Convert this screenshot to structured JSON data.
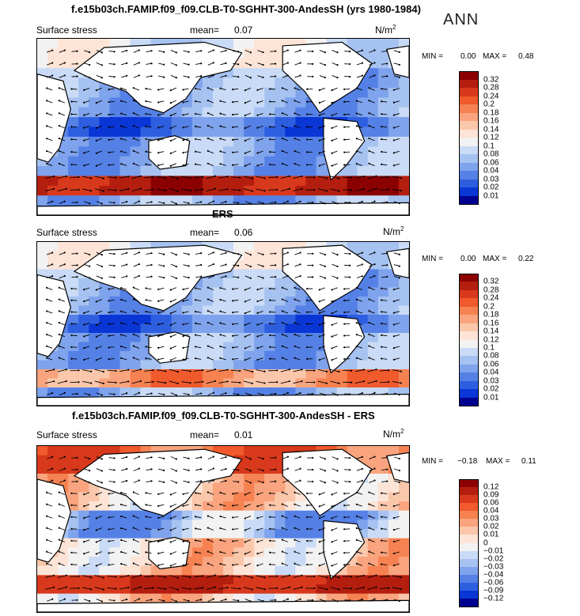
{
  "season": "ANN",
  "panels": [
    {
      "id": "model",
      "title": "f.e15b03ch.FAMIP.f09_f09.CLB-T0-SGHHT-300-AndesSH (yrs 1980-1984)",
      "field": "Surface stress",
      "mean_label": "mean=",
      "mean_value": "0.07",
      "units": "N/m",
      "units_sup": "2",
      "min_label": "MIN =",
      "min_value": "0.00",
      "max_label": "MAX =",
      "max_value": "0.48",
      "levels": [
        "0.32",
        "0.28",
        "0.24",
        "0.2",
        "0.18",
        "0.16",
        "0.14",
        "0.12",
        "0.1",
        "0.08",
        "0.06",
        "0.04",
        "0.03",
        "0.02",
        "0.01"
      ],
      "colors": [
        "#8b0000",
        "#b41e0f",
        "#d8381c",
        "#f05a2c",
        "#f68252",
        "#f9a47e",
        "#fbc7ab",
        "#fde4d6",
        "#f2f2f2",
        "#c9dbf6",
        "#a6c2f1",
        "#7fa3ec",
        "#5581e6",
        "#2e5ee0",
        "#0a36d6",
        "#000090"
      ]
    },
    {
      "id": "obs",
      "title": "ERS",
      "field": "Surface stress",
      "mean_label": "mean=",
      "mean_value": "0.06",
      "units": "N/m",
      "units_sup": "2",
      "min_label": "MIN =",
      "min_value": "0.00",
      "max_label": "MAX =",
      "max_value": "0.22",
      "levels": [
        "0.32",
        "0.28",
        "0.24",
        "0.2",
        "0.18",
        "0.16",
        "0.14",
        "0.12",
        "0.1",
        "0.08",
        "0.06",
        "0.04",
        "0.03",
        "0.02",
        "0.01"
      ],
      "colors": [
        "#8b0000",
        "#b41e0f",
        "#d8381c",
        "#f05a2c",
        "#f68252",
        "#f9a47e",
        "#fbc7ab",
        "#fde4d6",
        "#f2f2f2",
        "#c9dbf6",
        "#a6c2f1",
        "#7fa3ec",
        "#5581e6",
        "#2e5ee0",
        "#0a36d6",
        "#000090"
      ]
    },
    {
      "id": "diff",
      "title": "f.e15b03ch.FAMIP.f09_f09.CLB-T0-SGHHT-300-AndesSH - ERS",
      "field": "Surface stress",
      "mean_label": "mean=",
      "mean_value": "0.01",
      "units": "N/m",
      "units_sup": "2",
      "min_label": "MIN =",
      "min_value": "−0.18",
      "max_label": "MAX =",
      "max_value": "0.11",
      "levels": [
        "0.12",
        "0.09",
        "0.06",
        "0.04",
        "0.03",
        "0.02",
        "0.01",
        "0",
        "−0.01",
        "−0.02",
        "−0.03",
        "−0.04",
        "−0.06",
        "−0.09",
        "−0.12"
      ],
      "colors": [
        "#8b0000",
        "#b41e0f",
        "#d8381c",
        "#f05a2c",
        "#f68252",
        "#f9a47e",
        "#fbc7ab",
        "#fde4d6",
        "#f2f2f2",
        "#c9dbf6",
        "#a6c2f1",
        "#7fa3ec",
        "#5581e6",
        "#2e5ee0",
        "#0a36d6",
        "#000090"
      ]
    }
  ],
  "chart_data": [
    {
      "type": "heatmap",
      "title": "f.e15b03ch.FAMIP.f09_f09.CLB-T0-SGHHT-300-AndesSH (yrs 1980-1984)",
      "subtitle": "ANN",
      "variable": "Surface stress",
      "units": "N/m2",
      "mean": 0.07,
      "min": 0.0,
      "max": 0.48,
      "contour_levels": [
        0.01,
        0.02,
        0.03,
        0.04,
        0.06,
        0.08,
        0.1,
        0.12,
        0.14,
        0.16,
        0.18,
        0.2,
        0.24,
        0.28,
        0.32
      ],
      "overlay": "wind stress vectors"
    },
    {
      "type": "heatmap",
      "title": "ERS",
      "variable": "Surface stress",
      "units": "N/m2",
      "mean": 0.06,
      "min": 0.0,
      "max": 0.22,
      "contour_levels": [
        0.01,
        0.02,
        0.03,
        0.04,
        0.06,
        0.08,
        0.1,
        0.12,
        0.14,
        0.16,
        0.18,
        0.2,
        0.24,
        0.28,
        0.32
      ],
      "overlay": "wind stress vectors"
    },
    {
      "type": "heatmap",
      "title": "f.e15b03ch.FAMIP.f09_f09.CLB-T0-SGHHT-300-AndesSH - ERS",
      "variable": "Surface stress",
      "units": "N/m2",
      "mean": 0.01,
      "min": -0.18,
      "max": 0.11,
      "contour_levels": [
        -0.12,
        -0.09,
        -0.06,
        -0.04,
        -0.03,
        -0.02,
        -0.01,
        0,
        0.01,
        0.02,
        0.03,
        0.04,
        0.06,
        0.09,
        0.12
      ],
      "overlay": "wind stress difference vectors"
    }
  ]
}
